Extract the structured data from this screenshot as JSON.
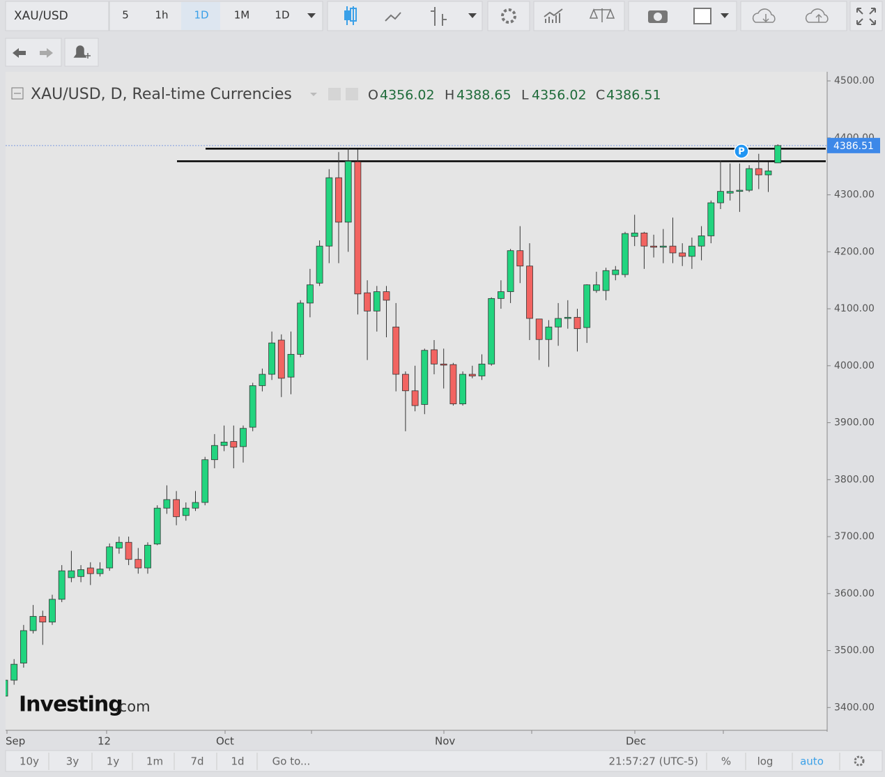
{
  "toolbar": {
    "symbol": "XAU/USD",
    "intervals": [
      "5",
      "1h",
      "1D",
      "1M",
      "1D"
    ]
  },
  "chart_data": {
    "type": "candlestick",
    "title": "XAU/USD, D, Real-time Currencies",
    "ohlc_legend": [
      {
        "label": "O",
        "value": 4356.02
      },
      {
        "label": "H",
        "value": 4388.65
      },
      {
        "label": "L",
        "value": 4356.02
      },
      {
        "label": "C",
        "value": 4386.51
      }
    ],
    "up_color": "#22d47f",
    "down_color": "#f26461",
    "candles": [
      [
        3420,
        3450,
        3410,
        3448
      ],
      [
        3448,
        3485,
        3440,
        3476
      ],
      [
        3478,
        3545,
        3470,
        3535
      ],
      [
        3535,
        3580,
        3530,
        3560
      ],
      [
        3560,
        3570,
        3510,
        3550
      ],
      [
        3550,
        3598,
        3545,
        3590
      ],
      [
        3590,
        3650,
        3585,
        3640
      ],
      [
        3628,
        3675,
        3620,
        3640
      ],
      [
        3630,
        3650,
        3620,
        3642
      ],
      [
        3645,
        3655,
        3615,
        3635
      ],
      [
        3635,
        3655,
        3630,
        3643
      ],
      [
        3645,
        3688,
        3640,
        3682
      ],
      [
        3680,
        3700,
        3670,
        3690
      ],
      [
        3690,
        3700,
        3650,
        3660
      ],
      [
        3660,
        3680,
        3635,
        3645
      ],
      [
        3645,
        3690,
        3635,
        3685
      ],
      [
        3687,
        3755,
        3685,
        3750
      ],
      [
        3750,
        3790,
        3740,
        3765
      ],
      [
        3765,
        3780,
        3720,
        3735
      ],
      [
        3737,
        3760,
        3728,
        3750
      ],
      [
        3750,
        3780,
        3745,
        3760
      ],
      [
        3760,
        3840,
        3755,
        3835
      ],
      [
        3835,
        3880,
        3820,
        3860
      ],
      [
        3860,
        3895,
        3850,
        3866
      ],
      [
        3867,
        3895,
        3820,
        3857
      ],
      [
        3858,
        3895,
        3830,
        3890
      ],
      [
        3892,
        3970,
        3885,
        3965
      ],
      [
        3965,
        3995,
        3955,
        3985
      ],
      [
        3985,
        4060,
        3975,
        4040
      ],
      [
        4045,
        4055,
        3945,
        3978
      ],
      [
        3980,
        4060,
        3950,
        4020
      ],
      [
        4020,
        4115,
        4015,
        4110
      ],
      [
        4110,
        4170,
        4085,
        4142
      ],
      [
        4145,
        4220,
        4140,
        4210
      ],
      [
        4210,
        4345,
        4180,
        4330
      ],
      [
        4330,
        4375,
        4180,
        4252
      ],
      [
        4252,
        4382,
        4200,
        4359
      ],
      [
        4358,
        4380,
        4090,
        4126
      ],
      [
        4128,
        4150,
        4010,
        4096
      ],
      [
        4096,
        4140,
        4060,
        4130
      ],
      [
        4130,
        4140,
        4050,
        4115
      ],
      [
        4068,
        4110,
        3955,
        3985
      ],
      [
        3985,
        3990,
        3885,
        3956
      ],
      [
        3956,
        4000,
        3920,
        3930
      ],
      [
        3932,
        4030,
        3915,
        4027
      ],
      [
        4028,
        4045,
        3985,
        4003
      ],
      [
        4003,
        4030,
        3960,
        4001
      ],
      [
        4002,
        4005,
        3930,
        3933
      ],
      [
        3933,
        3990,
        3930,
        3985
      ],
      [
        3985,
        4000,
        3978,
        3982
      ],
      [
        3982,
        4020,
        3975,
        4003
      ],
      [
        4003,
        4120,
        4000,
        4118
      ],
      [
        4118,
        4150,
        4100,
        4130
      ],
      [
        4130,
        4205,
        4110,
        4202
      ],
      [
        4202,
        4245,
        4145,
        4175
      ],
      [
        4175,
        4215,
        4045,
        4083
      ],
      [
        4082,
        4082,
        4010,
        4046
      ],
      [
        4046,
        4080,
        3998,
        4068
      ],
      [
        4068,
        4110,
        4035,
        4083
      ],
      [
        4083,
        4115,
        4065,
        4085
      ],
      [
        4085,
        4100,
        4025,
        4065
      ],
      [
        4067,
        4143,
        4040,
        4142
      ],
      [
        4132,
        4165,
        4128,
        4142
      ],
      [
        4132,
        4172,
        4115,
        4167
      ],
      [
        4160,
        4175,
        4150,
        4168
      ],
      [
        4160,
        4235,
        4155,
        4232
      ],
      [
        4227,
        4265,
        4210,
        4233
      ],
      [
        4233,
        4235,
        4170,
        4210
      ],
      [
        4210,
        4230,
        4190,
        4208
      ],
      [
        4208,
        4240,
        4180,
        4210
      ],
      [
        4210,
        4260,
        4180,
        4198
      ],
      [
        4198,
        4215,
        4175,
        4192
      ],
      [
        4192,
        4225,
        4170,
        4210
      ],
      [
        4210,
        4245,
        4185,
        4228
      ],
      [
        4228,
        4290,
        4215,
        4286
      ],
      [
        4286,
        4360,
        4275,
        4306
      ],
      [
        4303,
        4355,
        4290,
        4306
      ],
      [
        4306,
        4355,
        4270,
        4308
      ],
      [
        4308,
        4352,
        4305,
        4346
      ],
      [
        4346,
        4372,
        4310,
        4335
      ],
      [
        4335,
        4358,
        4305,
        4342
      ],
      [
        4356.02,
        4388.65,
        4356.02,
        4386.51
      ]
    ],
    "last_price": {
      "value": 4386.51,
      "label": "4386.51"
    },
    "levels": [
      4381,
      4359
    ],
    "marker": "P",
    "x_labels": [
      "Sep",
      "12",
      "Oct",
      "Nov",
      "Dec"
    ],
    "ylim": [
      3360,
      4516
    ],
    "yticks": [
      {
        "value": 3400,
        "label": "3400.00"
      },
      {
        "value": 3500,
        "label": "3500.00"
      },
      {
        "value": 3600,
        "label": "3600.00"
      },
      {
        "value": 3700,
        "label": "3700.00"
      },
      {
        "value": 3800,
        "label": "3800.00"
      },
      {
        "value": 3900,
        "label": "3900.00"
      },
      {
        "value": 4000,
        "label": "4000.00"
      },
      {
        "value": 4100,
        "label": "4100.00"
      },
      {
        "value": 4200,
        "label": "4200.00"
      },
      {
        "value": 4300,
        "label": "4300.00"
      },
      {
        "value": 4400,
        "label": "4400.00"
      },
      {
        "value": 4500,
        "label": "4500.00"
      }
    ],
    "logo": {
      "brand": "Investing",
      "suffix": ".com"
    }
  },
  "bottom_bar": {
    "ranges": [
      "10y",
      "3y",
      "1y",
      "1m",
      "7d",
      "1d",
      "Go to..."
    ],
    "time": "21:57:27 (UTC-5)",
    "options": [
      "%",
      "log",
      "auto"
    ]
  }
}
